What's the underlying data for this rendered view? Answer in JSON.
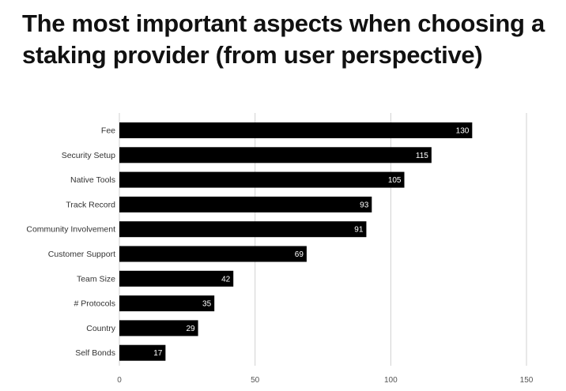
{
  "chart_data": {
    "type": "bar",
    "orientation": "horizontal",
    "title": "The most important aspects when choosing a\nstaking provider (from user perspective)",
    "categories": [
      "Fee",
      "Security Setup",
      "Native Tools",
      "Track Record",
      "Community Involvement",
      "Customer Support",
      "Team Size",
      "# Protocols",
      "Country",
      "Self Bonds"
    ],
    "values": [
      130,
      115,
      105,
      93,
      91,
      69,
      42,
      35,
      29,
      17
    ],
    "value_labels": [
      "130",
      "115",
      "105",
      "93",
      "91",
      "69",
      "42",
      "35",
      "29",
      "17"
    ],
    "xlim": [
      0,
      150
    ],
    "xticks": [
      0,
      50,
      100,
      150
    ],
    "xtick_labels": [
      "0",
      "50",
      "100",
      "150"
    ],
    "grid": true,
    "legend": "none",
    "bar_color": "#000000",
    "grid_color": "#d0d0d0"
  }
}
